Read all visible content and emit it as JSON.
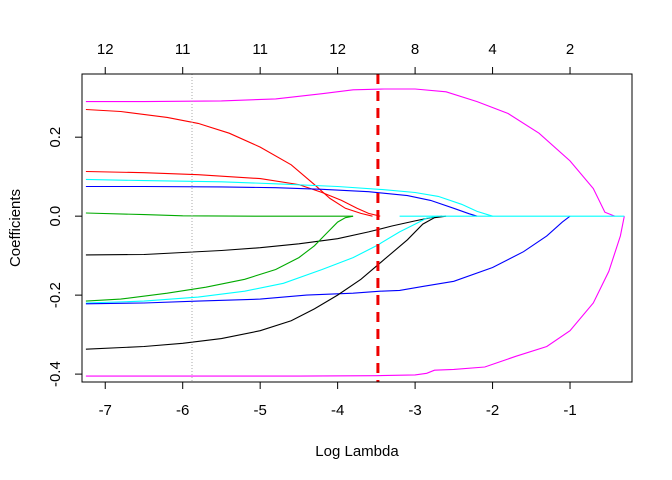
{
  "chart_data": {
    "type": "line",
    "xlabel": "Log Lambda",
    "ylabel": "Coefficients",
    "xlim": [
      -7.3,
      -0.2
    ],
    "ylim": [
      -0.42,
      0.36
    ],
    "x_ticks": [
      -7,
      -6,
      -5,
      -4,
      -3,
      -2,
      -1
    ],
    "y_ticks": [
      -0.4,
      -0.2,
      0.0,
      0.2
    ],
    "y_tick_labels": [
      "-0.4",
      "-0.2",
      "0.0",
      "0.2"
    ],
    "top_axis": {
      "positions": [
        -7,
        -6,
        -5,
        -4,
        -3,
        -2,
        -1
      ],
      "labels": [
        "12",
        "11",
        "11",
        "12",
        "8",
        "4",
        "2"
      ]
    },
    "vlines": [
      {
        "x": -5.88,
        "color": "#aaaaaa",
        "style": "dotted"
      },
      {
        "x": -3.48,
        "color": "#ee0000",
        "style": "dashed"
      }
    ],
    "series": [
      {
        "color": "#ff00ff",
        "points": [
          [
            -7.25,
            0.29
          ],
          [
            -6.5,
            0.29
          ],
          [
            -5.5,
            0.292
          ],
          [
            -4.8,
            0.297
          ],
          [
            -4.2,
            0.31
          ],
          [
            -3.8,
            0.32
          ],
          [
            -3.4,
            0.322
          ],
          [
            -3.0,
            0.322
          ],
          [
            -2.6,
            0.315
          ],
          [
            -2.2,
            0.29
          ],
          [
            -1.8,
            0.26
          ],
          [
            -1.4,
            0.21
          ],
          [
            -1.0,
            0.14
          ],
          [
            -0.7,
            0.07
          ],
          [
            -0.55,
            0.01
          ],
          [
            -0.42,
            0.0
          ]
        ]
      },
      {
        "color": "#ff0000",
        "points": [
          [
            -7.25,
            0.27
          ],
          [
            -6.8,
            0.265
          ],
          [
            -6.2,
            0.25
          ],
          [
            -5.8,
            0.235
          ],
          [
            -5.4,
            0.21
          ],
          [
            -5.0,
            0.175
          ],
          [
            -4.6,
            0.13
          ],
          [
            -4.3,
            0.08
          ],
          [
            -4.1,
            0.045
          ],
          [
            -3.9,
            0.02
          ],
          [
            -3.7,
            0.007
          ],
          [
            -3.55,
            0.0
          ]
        ]
      },
      {
        "color": "#ff0000",
        "points": [
          [
            -7.25,
            0.113
          ],
          [
            -6.5,
            0.11
          ],
          [
            -5.8,
            0.105
          ],
          [
            -5.0,
            0.095
          ],
          [
            -4.5,
            0.08
          ],
          [
            -4.2,
            0.06
          ],
          [
            -3.95,
            0.04
          ],
          [
            -3.75,
            0.02
          ],
          [
            -3.6,
            0.007
          ],
          [
            -3.45,
            0.0
          ]
        ]
      },
      {
        "color": "#00ffff",
        "points": [
          [
            -7.25,
            0.093
          ],
          [
            -6.5,
            0.09
          ],
          [
            -5.5,
            0.087
          ],
          [
            -4.8,
            0.082
          ],
          [
            -4.0,
            0.075
          ],
          [
            -3.4,
            0.067
          ],
          [
            -3.0,
            0.06
          ],
          [
            -2.7,
            0.05
          ],
          [
            -2.4,
            0.03
          ],
          [
            -2.2,
            0.012
          ],
          [
            -2.0,
            0.0
          ]
        ]
      },
      {
        "color": "#0000ff",
        "points": [
          [
            -7.25,
            0.075
          ],
          [
            -6.5,
            0.075
          ],
          [
            -5.5,
            0.074
          ],
          [
            -4.8,
            0.072
          ],
          [
            -4.2,
            0.068
          ],
          [
            -3.6,
            0.062
          ],
          [
            -3.1,
            0.052
          ],
          [
            -2.8,
            0.04
          ],
          [
            -2.5,
            0.02
          ],
          [
            -2.3,
            0.006
          ],
          [
            -2.2,
            0.0
          ]
        ]
      },
      {
        "color": "#00aa00",
        "points": [
          [
            -7.25,
            0.008
          ],
          [
            -6.5,
            0.004
          ],
          [
            -6.0,
            0.001
          ],
          [
            -5.0,
            0.0
          ],
          [
            -4.0,
            0.0
          ],
          [
            -3.8,
            0.0
          ]
        ]
      },
      {
        "color": "#000000",
        "points": [
          [
            -7.25,
            -0.098
          ],
          [
            -6.5,
            -0.097
          ],
          [
            -6.0,
            -0.092
          ],
          [
            -5.5,
            -0.087
          ],
          [
            -5.0,
            -0.08
          ],
          [
            -4.5,
            -0.07
          ],
          [
            -4.0,
            -0.057
          ],
          [
            -3.6,
            -0.04
          ],
          [
            -3.3,
            -0.025
          ],
          [
            -3.0,
            -0.012
          ],
          [
            -2.8,
            -0.004
          ],
          [
            -2.65,
            0.0
          ]
        ]
      },
      {
        "color": "#00aa00",
        "points": [
          [
            -7.25,
            -0.215
          ],
          [
            -6.8,
            -0.21
          ],
          [
            -6.2,
            -0.195
          ],
          [
            -5.7,
            -0.18
          ],
          [
            -5.2,
            -0.16
          ],
          [
            -4.8,
            -0.135
          ],
          [
            -4.5,
            -0.105
          ],
          [
            -4.3,
            -0.075
          ],
          [
            -4.15,
            -0.045
          ],
          [
            -4.0,
            -0.015
          ],
          [
            -3.9,
            -0.004
          ],
          [
            -3.8,
            0.0
          ]
        ]
      },
      {
        "color": "#00ffff",
        "points": [
          [
            -7.25,
            -0.22
          ],
          [
            -6.5,
            -0.215
          ],
          [
            -5.8,
            -0.205
          ],
          [
            -5.2,
            -0.19
          ],
          [
            -4.7,
            -0.17
          ],
          [
            -4.2,
            -0.135
          ],
          [
            -3.8,
            -0.105
          ],
          [
            -3.5,
            -0.075
          ],
          [
            -3.2,
            -0.04
          ],
          [
            -3.0,
            -0.02
          ],
          [
            -2.85,
            -0.005
          ],
          [
            -2.7,
            0.0
          ]
        ]
      },
      {
        "color": "#0000ff",
        "points": [
          [
            -7.25,
            -0.222
          ],
          [
            -6.5,
            -0.22
          ],
          [
            -5.8,
            -0.215
          ],
          [
            -5.0,
            -0.21
          ],
          [
            -4.4,
            -0.2
          ],
          [
            -3.8,
            -0.195
          ],
          [
            -3.45,
            -0.19
          ],
          [
            -3.2,
            -0.188
          ],
          [
            -2.9,
            -0.178
          ],
          [
            -2.5,
            -0.165
          ],
          [
            -2.0,
            -0.13
          ],
          [
            -1.6,
            -0.09
          ],
          [
            -1.3,
            -0.05
          ],
          [
            -1.1,
            -0.015
          ],
          [
            -1.0,
            0.0
          ]
        ]
      },
      {
        "color": "#000000",
        "points": [
          [
            -7.25,
            -0.337
          ],
          [
            -6.5,
            -0.33
          ],
          [
            -6.0,
            -0.322
          ],
          [
            -5.5,
            -0.31
          ],
          [
            -5.0,
            -0.29
          ],
          [
            -4.6,
            -0.265
          ],
          [
            -4.3,
            -0.235
          ],
          [
            -4.0,
            -0.2
          ],
          [
            -3.7,
            -0.16
          ],
          [
            -3.4,
            -0.11
          ],
          [
            -3.1,
            -0.06
          ],
          [
            -2.9,
            -0.02
          ],
          [
            -2.75,
            -0.004
          ],
          [
            -2.6,
            0.0
          ]
        ]
      },
      {
        "color": "#ff00ff",
        "points": [
          [
            -7.25,
            -0.405
          ],
          [
            -6.5,
            -0.405
          ],
          [
            -5.5,
            -0.405
          ],
          [
            -4.5,
            -0.405
          ],
          [
            -3.5,
            -0.404
          ],
          [
            -3.0,
            -0.402
          ],
          [
            -2.85,
            -0.398
          ],
          [
            -2.75,
            -0.39
          ],
          [
            -2.5,
            -0.388
          ],
          [
            -2.1,
            -0.382
          ],
          [
            -1.7,
            -0.355
          ],
          [
            -1.3,
            -0.33
          ],
          [
            -1.0,
            -0.29
          ],
          [
            -0.7,
            -0.22
          ],
          [
            -0.5,
            -0.14
          ],
          [
            -0.35,
            -0.05
          ],
          [
            -0.3,
            0.0
          ]
        ]
      },
      {
        "color": "#00ffff",
        "points": [
          [
            -3.2,
            0.0
          ],
          [
            -2.0,
            0.0
          ],
          [
            -1.0,
            0.0
          ],
          [
            -0.3,
            0.0
          ]
        ]
      }
    ]
  }
}
